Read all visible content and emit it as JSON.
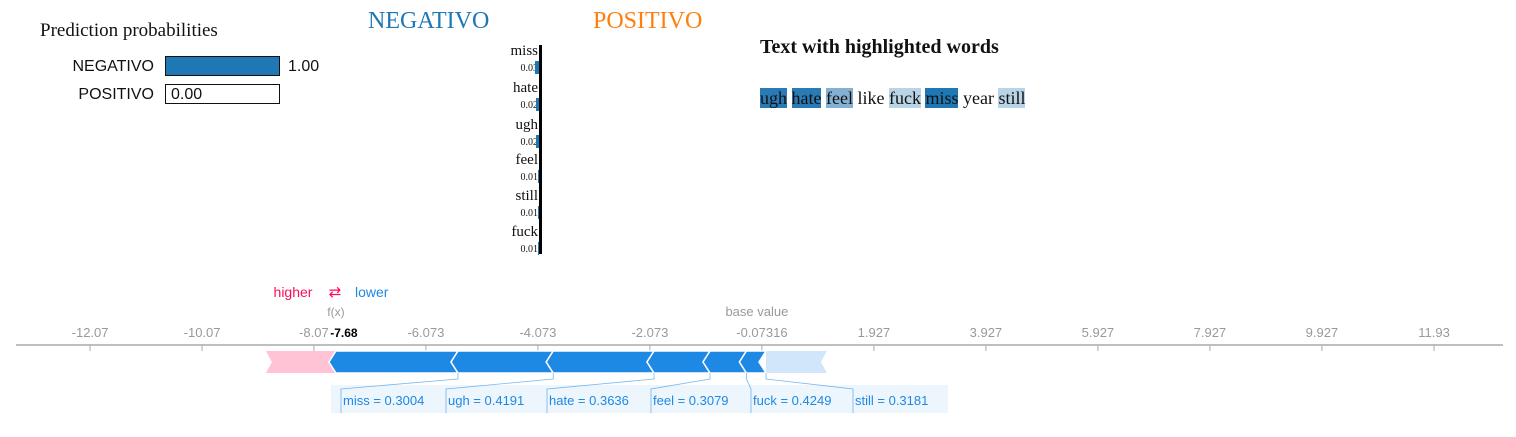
{
  "prediction_probabilities": {
    "title": "Prediction probabilities",
    "rows": [
      {
        "label": "NEGATIVO",
        "value": 1.0,
        "value_text": "1.00",
        "color": "#1f77b4"
      },
      {
        "label": "POSITIVO",
        "value": 0.0,
        "value_text": "0.00",
        "color": "#ff7f0e"
      }
    ]
  },
  "class_headers": {
    "negative": "NEGATIVO",
    "positive": "POSITIVO",
    "negative_color": "#1f77b4",
    "positive_color": "#ff7f0e"
  },
  "feature_weights": [
    {
      "word": "miss",
      "weight_text": "0.03",
      "weight": 0.03
    },
    {
      "word": "hate",
      "weight_text": "0.02",
      "weight": 0.02
    },
    {
      "word": "ugh",
      "weight_text": "0.02",
      "weight": 0.02
    },
    {
      "word": "feel",
      "weight_text": "0.01",
      "weight": 0.01
    },
    {
      "word": "still",
      "weight_text": "0.01",
      "weight": 0.01
    },
    {
      "word": "fuck",
      "weight_text": "0.01",
      "weight": 0.01
    }
  ],
  "highlighted_text": {
    "title": "Text with highlighted words",
    "words": [
      {
        "text": "ugh",
        "highlight": "#2a7ab6"
      },
      {
        "text": "hate",
        "highlight": "#2a7ab6"
      },
      {
        "text": "feel",
        "highlight": "#83b1d3"
      },
      {
        "text": "like",
        "highlight": ""
      },
      {
        "text": "fuck",
        "highlight": "#b9d3e7"
      },
      {
        "text": "miss",
        "highlight": "#1f77b4"
      },
      {
        "text": "year",
        "highlight": ""
      },
      {
        "text": "still",
        "highlight": "#b9d3e7"
      }
    ]
  },
  "chart_data": {
    "type": "force",
    "legend": {
      "higher": "higher",
      "lower": "lower",
      "arrows": "⇄",
      "higher_color": "#ff0d57",
      "lower_color": "#1e88e5"
    },
    "fx_label": "f(x)",
    "fx_value": -7.68,
    "fx_text": "-7.68",
    "base_value_label": "base value",
    "base_value": -0.07316,
    "ticks": [
      -12.07,
      -10.07,
      -8.073,
      -6.073,
      -4.073,
      -2.073,
      -0.07316,
      1.927,
      3.927,
      5.927,
      7.927,
      9.927,
      11.93
    ],
    "tick_labels": [
      "-12.07",
      "-10.07",
      "-8.07",
      "-6.073",
      "-4.073",
      "-2.073",
      "-0.07316",
      "1.927",
      "3.927",
      "5.927",
      "7.927",
      "9.927",
      "11.93"
    ],
    "features": [
      {
        "label": "miss = 0.3004",
        "start": -7.68,
        "end": -5.5
      },
      {
        "label": "ugh = 0.4191",
        "start": -5.5,
        "end": -3.8
      },
      {
        "label": "hate = 0.3636",
        "start": -3.8,
        "end": -2.0
      },
      {
        "label": "feel = 0.3079",
        "start": -2.0,
        "end": -1.0
      },
      {
        "label": "fuck = 0.4249",
        "start": -1.0,
        "end": -0.35
      },
      {
        "label": "still = 0.3181",
        "start": -0.35,
        "end": 0.0
      }
    ]
  }
}
